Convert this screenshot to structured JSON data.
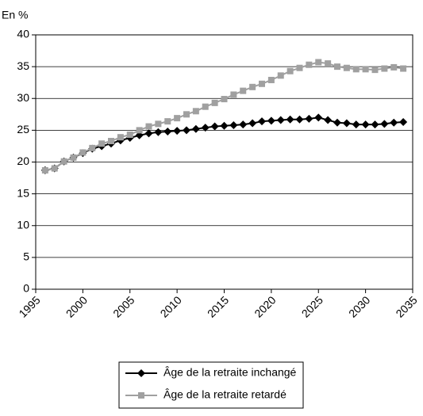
{
  "chart_data": {
    "type": "line",
    "y_label": "En %",
    "x": [
      1996,
      1997,
      1998,
      1999,
      2000,
      2001,
      2002,
      2003,
      2004,
      2005,
      2006,
      2007,
      2008,
      2009,
      2010,
      2011,
      2012,
      2013,
      2014,
      2015,
      2016,
      2017,
      2018,
      2019,
      2020,
      2021,
      2022,
      2023,
      2024,
      2025,
      2026,
      2027,
      2028,
      2029,
      2030,
      2031,
      2032,
      2033,
      2034
    ],
    "series": [
      {
        "name": "Âge de la retraite inchangé",
        "color": "#000000",
        "marker": "diamond",
        "values": [
          18.7,
          19.0,
          20.1,
          20.7,
          21.4,
          22.1,
          22.5,
          22.9,
          23.4,
          23.8,
          24.2,
          24.5,
          24.7,
          24.8,
          24.9,
          25.0,
          25.2,
          25.4,
          25.6,
          25.7,
          25.8,
          25.9,
          26.1,
          26.4,
          26.5,
          26.6,
          26.7,
          26.7,
          26.8,
          27.0,
          26.6,
          26.2,
          26.1,
          25.9,
          25.9,
          25.9,
          26.0,
          26.2,
          26.3
        ]
      },
      {
        "name": "Âge de la retraite retardé",
        "color": "#a0a0a0",
        "marker": "square",
        "values": [
          18.7,
          19.0,
          20.1,
          20.7,
          21.5,
          22.2,
          22.9,
          23.3,
          23.9,
          24.3,
          25.0,
          25.6,
          26.0,
          26.4,
          26.9,
          27.5,
          28.0,
          28.7,
          29.3,
          29.9,
          30.6,
          31.2,
          31.8,
          32.3,
          32.9,
          33.6,
          34.3,
          34.8,
          35.3,
          35.7,
          35.5,
          35.0,
          34.8,
          34.6,
          34.6,
          34.5,
          34.7,
          34.9,
          34.7
        ]
      }
    ],
    "xlim": [
      1995,
      2035
    ],
    "xticks": [
      1995,
      2000,
      2005,
      2010,
      2015,
      2020,
      2025,
      2030,
      2035
    ],
    "ylim": [
      0,
      40
    ],
    "yticks": [
      0,
      5,
      10,
      15,
      20,
      25,
      30,
      35,
      40
    ],
    "grid": true
  }
}
